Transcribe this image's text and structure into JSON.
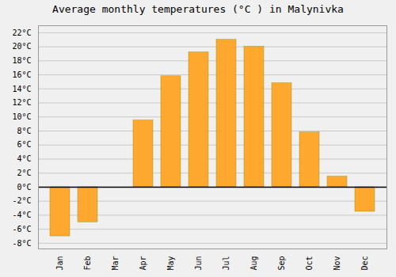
{
  "chart_data": {
    "type": "bar",
    "title": "Average monthly temperatures (°C ) in Malynivka",
    "categories": [
      "Jan",
      "Feb",
      "Mar",
      "Apr",
      "May",
      "Jun",
      "Jul",
      "Aug",
      "Sep",
      "Oct",
      "Nov",
      "Dec"
    ],
    "values": [
      -7.0,
      -5.0,
      0.0,
      9.5,
      15.8,
      19.2,
      21.0,
      20.0,
      14.8,
      7.8,
      1.5,
      -3.5
    ],
    "color": "#FFA830",
    "ylim": [
      -8.8,
      23.0
    ],
    "yticks": [
      {
        "value": -8,
        "label": "-8°C"
      },
      {
        "value": -6,
        "label": "-6°C"
      },
      {
        "value": -4,
        "label": "-4°C"
      },
      {
        "value": -2,
        "label": "-2°C"
      },
      {
        "value": 0,
        "label": "0°C"
      },
      {
        "value": 2,
        "label": "2°C"
      },
      {
        "value": 4,
        "label": "4°C"
      },
      {
        "value": 6,
        "label": "6°C"
      },
      {
        "value": 8,
        "label": "8°C"
      },
      {
        "value": 10,
        "label": "10°C"
      },
      {
        "value": 12,
        "label": "12°C"
      },
      {
        "value": 14,
        "label": "14°C"
      },
      {
        "value": 16,
        "label": "16°C"
      },
      {
        "value": 18,
        "label": "18°C"
      },
      {
        "value": 20,
        "label": "20°C"
      },
      {
        "value": 22,
        "label": "22°C"
      }
    ],
    "grid": true
  }
}
